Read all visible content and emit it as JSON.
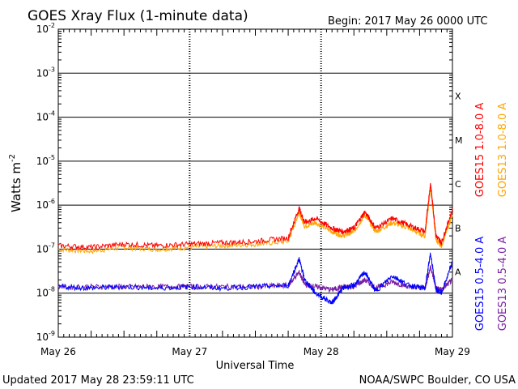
{
  "header": {
    "title": "GOES Xray Flux (1-minute data)",
    "begin": "Begin:  2017 May 26 0000 UTC"
  },
  "footer": {
    "updated": "Updated 2017 May 28 23:59:11 UTC",
    "credit": "NOAA/SWPC Boulder, CO USA"
  },
  "colors": {
    "goes15_long": "#ff0000",
    "goes13_long": "#ffa500",
    "goes15_short": "#0000ff",
    "goes13_short": "#7b1fa2",
    "axis": "#000000"
  },
  "chart_data": {
    "type": "line",
    "title": "GOES Xray Flux (1-minute data)",
    "xlabel": "Universal Time",
    "ylabel_base": "Watts m",
    "ylabel_exp": "-2",
    "yscale": "log",
    "ylim": [
      1e-09,
      0.01
    ],
    "xlim": [
      "2017-05-26",
      "2017-05-29"
    ],
    "x_ticks": [
      "May 26",
      "May 27",
      "May 28",
      "May 29"
    ],
    "y_ticks": [
      {
        "base": "10",
        "exp": "-2"
      },
      {
        "base": "10",
        "exp": "-3"
      },
      {
        "base": "10",
        "exp": "-4"
      },
      {
        "base": "10",
        "exp": "-5"
      },
      {
        "base": "10",
        "exp": "-6"
      },
      {
        "base": "10",
        "exp": "-7"
      },
      {
        "base": "10",
        "exp": "-8"
      },
      {
        "base": "10",
        "exp": "-9"
      }
    ],
    "flare_classes": [
      {
        "label": "X",
        "flux": 0.0001
      },
      {
        "label": "M",
        "flux": 1e-05
      },
      {
        "label": "C",
        "flux": 1e-06
      },
      {
        "label": "B",
        "flux": 1e-07
      },
      {
        "label": "A",
        "flux": 1e-08
      }
    ],
    "series": [
      {
        "name": "GOES15 1.0-8.0 A",
        "color": "#ff0000",
        "x": [
          "2017-05-26 00:00",
          "2017-05-26 06:00",
          "2017-05-26 12:00",
          "2017-05-26 18:00",
          "2017-05-27 00:00",
          "2017-05-27 06:00",
          "2017-05-27 12:00",
          "2017-05-27 18:00",
          "2017-05-27 20:00",
          "2017-05-27 21:00",
          "2017-05-27 23:00",
          "2017-05-28 02:00",
          "2017-05-28 04:00",
          "2017-05-28 06:00",
          "2017-05-28 08:00",
          "2017-05-28 10:00",
          "2017-05-28 13:00",
          "2017-05-28 16:00",
          "2017-05-28 19:00",
          "2017-05-28 20:00",
          "2017-05-28 21:00",
          "2017-05-28 22:00",
          "2017-05-29 00:00"
        ],
        "y": [
          1.2e-07,
          1.1e-07,
          1.3e-07,
          1.2e-07,
          1.3e-07,
          1.4e-07,
          1.5e-07,
          1.8e-07,
          8.5e-07,
          4e-07,
          5e-07,
          3e-07,
          2.5e-07,
          3e-07,
          7e-07,
          3e-07,
          5e-07,
          3.5e-07,
          2.5e-07,
          3.2e-06,
          2e-07,
          1.4e-07,
          8e-07
        ]
      },
      {
        "name": "GOES13 1.0-8.0 A",
        "color": "#ffa500",
        "x": [
          "2017-05-26 00:00",
          "2017-05-26 06:00",
          "2017-05-26 12:00",
          "2017-05-26 18:00",
          "2017-05-27 00:00",
          "2017-05-27 06:00",
          "2017-05-27 12:00",
          "2017-05-27 18:00",
          "2017-05-27 20:00",
          "2017-05-27 21:00",
          "2017-05-27 23:00",
          "2017-05-28 02:00",
          "2017-05-28 04:00",
          "2017-05-28 06:00",
          "2017-05-28 08:00",
          "2017-05-28 10:00",
          "2017-05-28 13:00",
          "2017-05-28 16:00",
          "2017-05-28 19:00",
          "2017-05-28 20:00",
          "2017-05-28 21:00",
          "2017-05-28 22:00",
          "2017-05-29 00:00"
        ],
        "y": [
          1e-07,
          9e-08,
          1.1e-07,
          1e-07,
          1.1e-07,
          1.2e-07,
          1.3e-07,
          1.5e-07,
          7e-07,
          3.3e-07,
          4e-07,
          2.5e-07,
          2e-07,
          2.5e-07,
          6e-07,
          2.5e-07,
          4e-07,
          3e-07,
          2e-07,
          2.5e-06,
          1.6e-07,
          1.2e-07,
          6e-07
        ]
      },
      {
        "name": "GOES15 0.5-4.0 A",
        "color": "#0000ff",
        "x": [
          "2017-05-26 00:00",
          "2017-05-26 06:00",
          "2017-05-26 12:00",
          "2017-05-26 18:00",
          "2017-05-27 00:00",
          "2017-05-27 06:00",
          "2017-05-27 12:00",
          "2017-05-27 18:00",
          "2017-05-27 20:00",
          "2017-05-27 21:00",
          "2017-05-27 23:00",
          "2017-05-28 02:00",
          "2017-05-28 04:00",
          "2017-05-28 06:00",
          "2017-05-28 08:00",
          "2017-05-28 10:00",
          "2017-05-28 13:00",
          "2017-05-28 16:00",
          "2017-05-28 19:00",
          "2017-05-28 20:00",
          "2017-05-28 21:00",
          "2017-05-28 22:00",
          "2017-05-29 00:00"
        ],
        "y": [
          1.4e-08,
          1.3e-08,
          1.4e-08,
          1.3e-08,
          1.4e-08,
          1.3e-08,
          1.4e-08,
          1.5e-08,
          6e-08,
          2e-08,
          1e-08,
          6e-09,
          1.3e-08,
          1.5e-08,
          3e-08,
          1.1e-08,
          2.5e-08,
          1.5e-08,
          1.3e-08,
          8e-08,
          1.2e-08,
          1e-08,
          5e-08
        ]
      },
      {
        "name": "GOES13 0.5-4.0 A",
        "color": "#7b1fa2",
        "x": [
          "2017-05-26 00:00",
          "2017-05-26 06:00",
          "2017-05-26 12:00",
          "2017-05-26 18:00",
          "2017-05-27 00:00",
          "2017-05-27 06:00",
          "2017-05-27 12:00",
          "2017-05-27 18:00",
          "2017-05-27 20:00",
          "2017-05-27 21:00",
          "2017-05-27 23:00",
          "2017-05-28 02:00",
          "2017-05-28 04:00",
          "2017-05-28 06:00",
          "2017-05-28 08:00",
          "2017-05-28 10:00",
          "2017-05-28 13:00",
          "2017-05-28 16:00",
          "2017-05-28 19:00",
          "2017-05-28 20:00",
          "2017-05-28 21:00",
          "2017-05-28 22:00",
          "2017-05-29 00:00"
        ],
        "y": [
          1.4e-08,
          1.4e-08,
          1.4e-08,
          1.4e-08,
          1.4e-08,
          1.4e-08,
          1.4e-08,
          1.5e-08,
          3e-08,
          1.6e-08,
          1.4e-08,
          1.2e-08,
          1.4e-08,
          1.4e-08,
          2e-08,
          1.3e-08,
          1.8e-08,
          1.4e-08,
          1.3e-08,
          4e-08,
          1.3e-08,
          1.2e-08,
          2e-08
        ]
      }
    ]
  }
}
